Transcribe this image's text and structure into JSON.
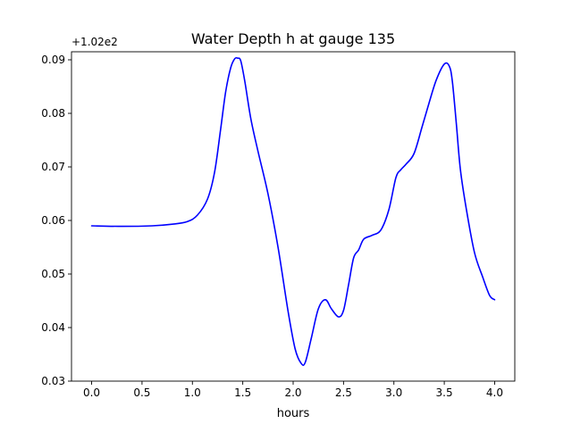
{
  "chart_data": {
    "type": "line",
    "title": "Water Depth h at gauge 135",
    "xlabel": "hours",
    "ylabel": "",
    "offset_text": "+1.02e2",
    "xlim": [
      -0.2,
      4.2
    ],
    "ylim": [
      0.03,
      0.0915
    ],
    "x_ticks": [
      0.0,
      0.5,
      1.0,
      1.5,
      2.0,
      2.5,
      3.0,
      3.5,
      4.0
    ],
    "x_tick_labels": [
      "0.0",
      "0.5",
      "1.0",
      "1.5",
      "2.0",
      "2.5",
      "3.0",
      "3.5",
      "4.0"
    ],
    "y_ticks": [
      0.03,
      0.04,
      0.05,
      0.06,
      0.07,
      0.08,
      0.09
    ],
    "y_tick_labels": [
      "0.03",
      "0.04",
      "0.05",
      "0.06",
      "0.07",
      "0.08",
      "0.09"
    ],
    "grid": false,
    "series": [
      {
        "color": "#0000ff",
        "x": [
          0.0,
          0.3,
          0.6,
          0.8,
          0.95,
          1.05,
          1.15,
          1.22,
          1.28,
          1.33,
          1.38,
          1.42,
          1.45,
          1.48,
          1.52,
          1.58,
          1.65,
          1.75,
          1.85,
          1.95,
          2.02,
          2.08,
          2.12,
          2.18,
          2.25,
          2.32,
          2.38,
          2.45,
          2.5,
          2.55,
          2.6,
          2.65,
          2.7,
          2.78,
          2.87,
          2.95,
          3.02,
          3.07,
          3.12,
          3.2,
          3.28,
          3.35,
          3.42,
          3.5,
          3.55,
          3.58,
          3.62,
          3.66,
          3.72,
          3.8,
          3.88,
          3.95,
          4.0
        ],
        "y": [
          0.059,
          0.0589,
          0.059,
          0.0593,
          0.0598,
          0.061,
          0.064,
          0.069,
          0.077,
          0.084,
          0.0885,
          0.0902,
          0.0903,
          0.0898,
          0.086,
          0.079,
          0.073,
          0.065,
          0.055,
          0.043,
          0.036,
          0.0333,
          0.0335,
          0.038,
          0.0435,
          0.0452,
          0.0435,
          0.042,
          0.0432,
          0.048,
          0.053,
          0.0545,
          0.0565,
          0.0572,
          0.0582,
          0.062,
          0.068,
          0.0695,
          0.0705,
          0.0725,
          0.0775,
          0.082,
          0.0862,
          0.0892,
          0.0888,
          0.086,
          0.078,
          0.0695,
          0.062,
          0.054,
          0.0495,
          0.046,
          0.0452
        ]
      }
    ]
  }
}
